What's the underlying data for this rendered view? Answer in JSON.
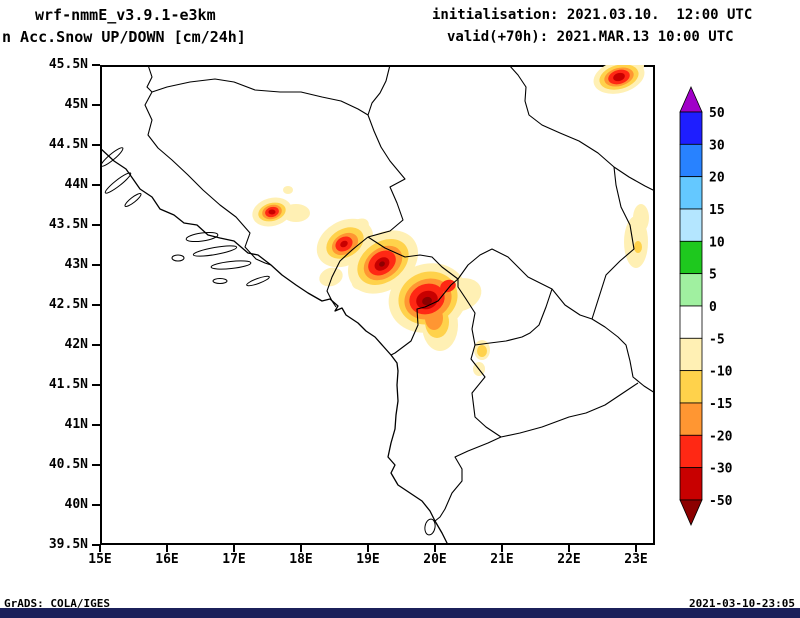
{
  "header": {
    "model": "wrf-nmmE_v3.9.1-e3km",
    "product": "n Acc.Snow UP/DOWN [cm/24h]",
    "init": "initialisation: 2021.03.10.  12:00 UTC",
    "valid": "valid(+70h): 2021.MAR.13 10:00 UTC"
  },
  "axes": {
    "y_ticks": [
      "45.5N",
      "45N",
      "44.5N",
      "44N",
      "43.5N",
      "43N",
      "42.5N",
      "42N",
      "41.5N",
      "41N",
      "40.5N",
      "40N",
      "39.5N"
    ],
    "x_ticks": [
      "15E",
      "16E",
      "17E",
      "18E",
      "19E",
      "20E",
      "21E",
      "22E",
      "23E"
    ]
  },
  "colorbar": {
    "labels": [
      "50",
      "30",
      "20",
      "15",
      "10",
      "5",
      "0",
      "-5",
      "-10",
      "-15",
      "-20",
      "-30",
      "-50"
    ],
    "colors": [
      "#a000c8",
      "#1e1eff",
      "#2882ff",
      "#64c8ff",
      "#b4e6ff",
      "#1ec81e",
      "#a0f0a0",
      "#ffffff",
      "#fff0b4",
      "#ffd24b",
      "#ff9632",
      "#ff2814",
      "#c80000",
      "#8c0000"
    ]
  },
  "map": {
    "lon_range": [
      "15E",
      "23E"
    ],
    "lat_range": [
      "39.5N",
      "45.5N"
    ],
    "region": "Western Balkans / Adriatic",
    "features": [
      {
        "name": "main-band",
        "approx_position": "18.6E-20.1E, 42.4N-43.4N",
        "peak_value": "below -50 cm/24h"
      },
      {
        "name": "west-spot",
        "approx_position": "17.6E, 43.65N",
        "peak_value": "-30 to -50 cm/24h"
      },
      {
        "name": "northeast-spot",
        "approx_position": "22.7E, 45.35N",
        "peak_value": "-30 to -50 cm/24h"
      },
      {
        "name": "east-streak",
        "approx_position": "22.9E, 43.0N-43.6N",
        "peak_value": "-10 to -15 cm/24h"
      },
      {
        "name": "south-spots",
        "approx_position": "20.7E, 41.7N-42.0N",
        "peak_value": "-10 to -15 cm/24h"
      }
    ]
  },
  "footer": {
    "left": "GrADS: COLA/IGES",
    "right": "2021-03-10-23:05",
    "bar_color": "#1b205a"
  }
}
